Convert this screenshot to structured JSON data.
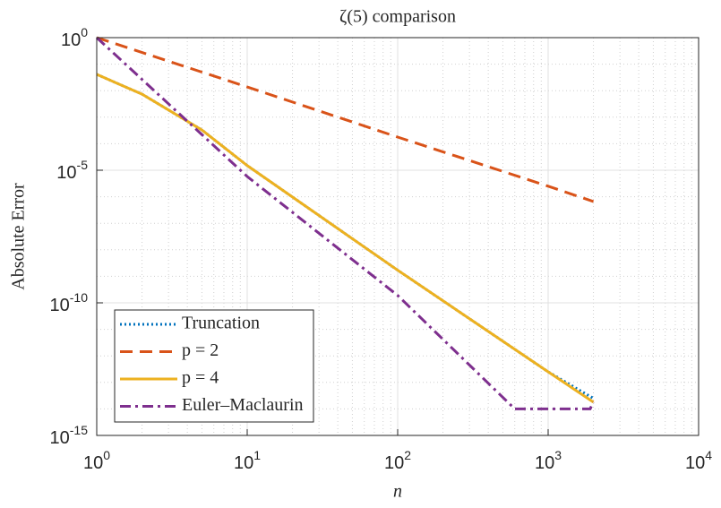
{
  "chart_data": {
    "type": "line",
    "title": "ζ(5) comparison",
    "x_label": "n",
    "y_label": "Absolute Error",
    "x_scale": "log",
    "y_scale": "log",
    "grid": true,
    "minor_grid": true,
    "legend_position": "lower left",
    "xlim": [
      1,
      10000
    ],
    "ylim": [
      1e-15,
      1
    ],
    "xticks": [
      {
        "value": 1,
        "label": "10",
        "exponent": "0"
      },
      {
        "value": 10,
        "label": "10",
        "exponent": "1"
      },
      {
        "value": 100,
        "label": "10",
        "exponent": "2"
      },
      {
        "value": 1000,
        "label": "10",
        "exponent": "3"
      },
      {
        "value": 10000,
        "label": "10",
        "exponent": "4"
      }
    ],
    "yticks": [
      {
        "value": 1e-15,
        "label": "10",
        "exponent": "-15"
      },
      {
        "value": 1e-10,
        "label": "10",
        "exponent": "-10"
      },
      {
        "value": 1e-05,
        "label": "10",
        "exponent": "-5"
      },
      {
        "value": 1,
        "label": "10",
        "exponent": "0"
      }
    ],
    "series": [
      {
        "name": "Truncation",
        "color": "#0072BD",
        "dash": "dotted",
        "x": [
          1,
          2,
          5,
          10,
          100,
          1000,
          2000
        ],
        "values": [
          0.041,
          0.0074,
          0.00033,
          1.5e-05,
          1.7e-09,
          2.5e-13,
          2.5e-14
        ]
      },
      {
        "name": "p = 2",
        "color": "#D95319",
        "dash": "dashed",
        "x": [
          1,
          10,
          100,
          1000,
          2000
        ],
        "values": [
          1,
          0.0138,
          0.000178,
          2.5e-06,
          6.6e-07
        ]
      },
      {
        "name": "p = 4",
        "color": "#EDB120",
        "dash": "solid",
        "x": [
          1,
          2,
          5,
          10,
          100,
          1000,
          2000
        ],
        "values": [
          0.041,
          0.0074,
          0.00033,
          1.5e-05,
          1.7e-09,
          2.5e-13,
          1.8e-14
        ]
      },
      {
        "name": "Euler–Maclaurin",
        "color": "#7E2F8E",
        "dash": "dashdot",
        "x": [
          1,
          5,
          10,
          100,
          600,
          1900,
          2000
        ],
        "values": [
          1,
          0.00022,
          5.8e-06,
          1.9e-10,
          1e-14,
          1e-14,
          1.8e-14
        ]
      }
    ]
  }
}
